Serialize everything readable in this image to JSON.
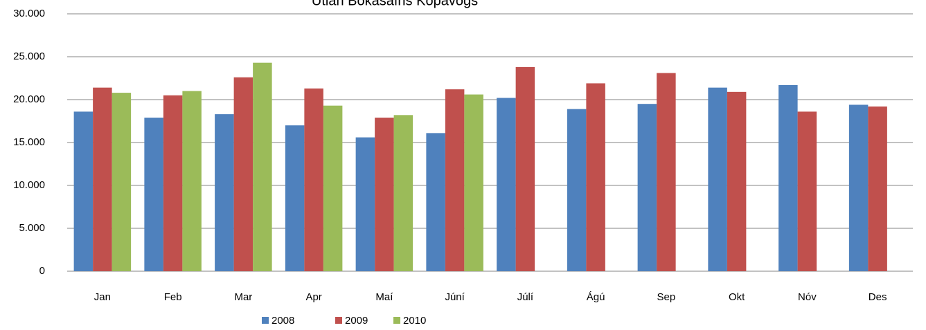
{
  "chart_data": {
    "type": "bar",
    "title": "Útlán Bókasafns Kópavogs",
    "categories": [
      "Jan",
      "Feb",
      "Mar",
      "Apr",
      "Maí",
      "Júní",
      "Júlí",
      "Ágú",
      "Sep",
      "Okt",
      "Nóv",
      "Des"
    ],
    "series": [
      {
        "name": "2008",
        "color": "#4f81bd",
        "values": [
          18600,
          17900,
          18300,
          17000,
          15600,
          16100,
          20200,
          18900,
          19500,
          21400,
          21700,
          19400
        ]
      },
      {
        "name": "2009",
        "color": "#c0504d",
        "values": [
          21400,
          20500,
          22600,
          21300,
          17900,
          21200,
          23800,
          21900,
          23100,
          20900,
          18600,
          19200
        ]
      },
      {
        "name": "2010",
        "color": "#9bbb59",
        "values": [
          20800,
          21000,
          24300,
          19300,
          18200,
          20600,
          null,
          null,
          null,
          null,
          null,
          null
        ]
      }
    ],
    "ylim": [
      0,
      30000
    ],
    "yticks": [
      0,
      {
        "value": 5000,
        "label": "5.000"
      },
      {
        "value": 10000,
        "label": "10.000"
      },
      {
        "value": 15000,
        "label": "15.000"
      },
      {
        "value": 20000,
        "label": "20.000"
      },
      {
        "value": 25000,
        "label": "25.000"
      },
      {
        "value": 30000,
        "label": "30.000"
      }
    ],
    "grid": true,
    "legend": "bottom"
  }
}
